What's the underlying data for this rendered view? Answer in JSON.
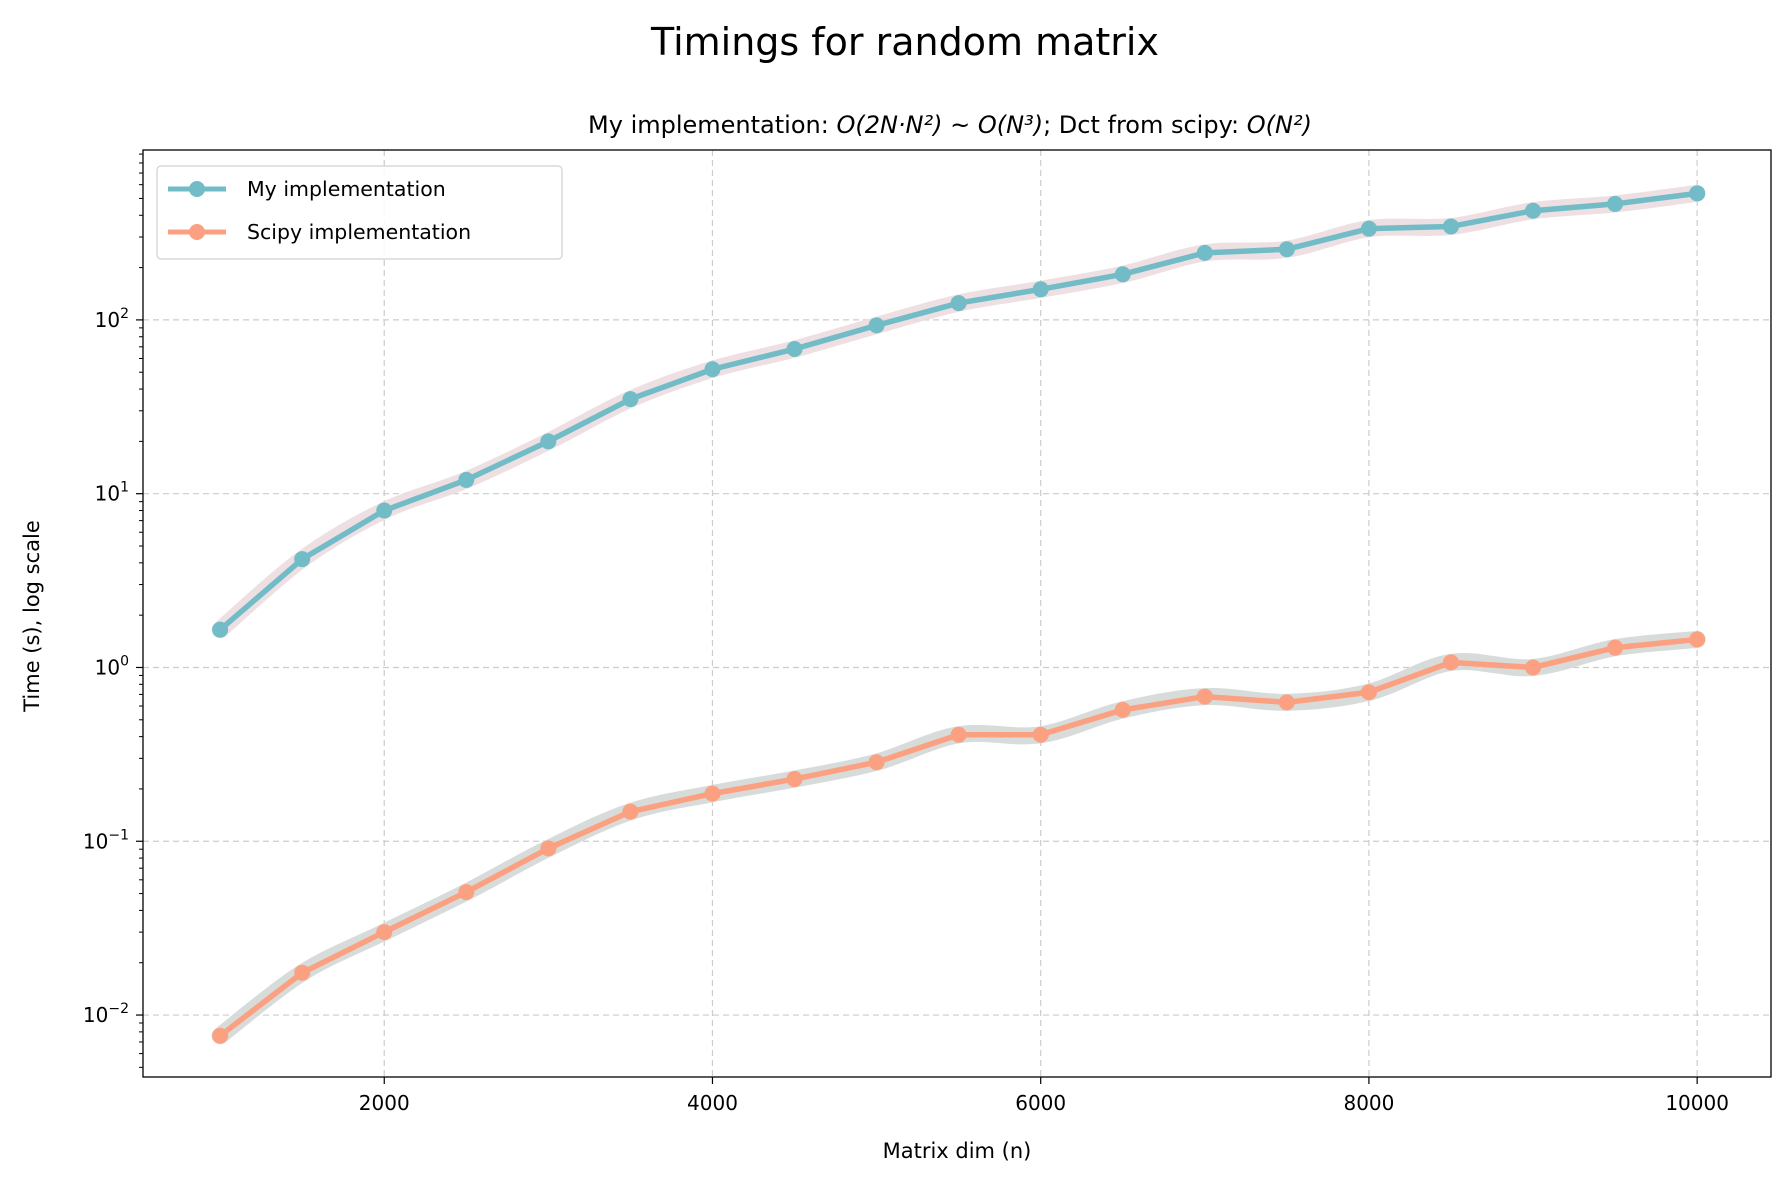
{
  "chart_data": {
    "type": "line",
    "title": "Timings for random matrix",
    "subtitle": {
      "prefix": "My implementation: ",
      "mine_complexity": "O(2N·N²) ~ O(N³)",
      "middle": "; Dct from scipy: ",
      "scipy_complexity": "O(N²)"
    },
    "xlabel": "Matrix dim (n)",
    "ylabel": "Time (s), log scale",
    "xlim": [
      530,
      10450
    ],
    "ylim": [
      0.0044,
      950
    ],
    "yscale": "log",
    "grid": true,
    "legend_position": "top-left",
    "xticks": [
      2000,
      4000,
      6000,
      8000,
      10000
    ],
    "yticks": [
      {
        "value": 0.01,
        "base": "10",
        "exp": "−2"
      },
      {
        "value": 0.1,
        "base": "10",
        "exp": "−1"
      },
      {
        "value": 1,
        "base": "10",
        "exp": "0"
      },
      {
        "value": 10,
        "base": "10",
        "exp": "1"
      },
      {
        "value": 100,
        "base": "10",
        "exp": "2"
      }
    ],
    "x": [
      1000,
      1500,
      2000,
      2500,
      3000,
      3500,
      4000,
      4500,
      5000,
      5500,
      6000,
      6500,
      7000,
      7500,
      8000,
      8500,
      9000,
      9500,
      10000
    ],
    "series": [
      {
        "name": "My implementation",
        "color": "#72bcc8",
        "band_color": "#ecdcdf",
        "values": [
          1.65,
          4.2,
          8.0,
          12.0,
          20.0,
          35.0,
          52.0,
          68.0,
          93.0,
          125.0,
          150.0,
          183.0,
          243.0,
          255.0,
          335.0,
          345.0,
          425.0,
          465.0,
          535.0
        ]
      },
      {
        "name": "Scipy implementation",
        "color": "#fba081",
        "band_color": "#d3d8d6",
        "values": [
          0.0076,
          0.0175,
          0.03,
          0.051,
          0.091,
          0.148,
          0.188,
          0.228,
          0.285,
          0.41,
          0.41,
          0.57,
          0.68,
          0.63,
          0.72,
          1.07,
          1.0,
          1.3,
          1.45
        ]
      }
    ]
  }
}
